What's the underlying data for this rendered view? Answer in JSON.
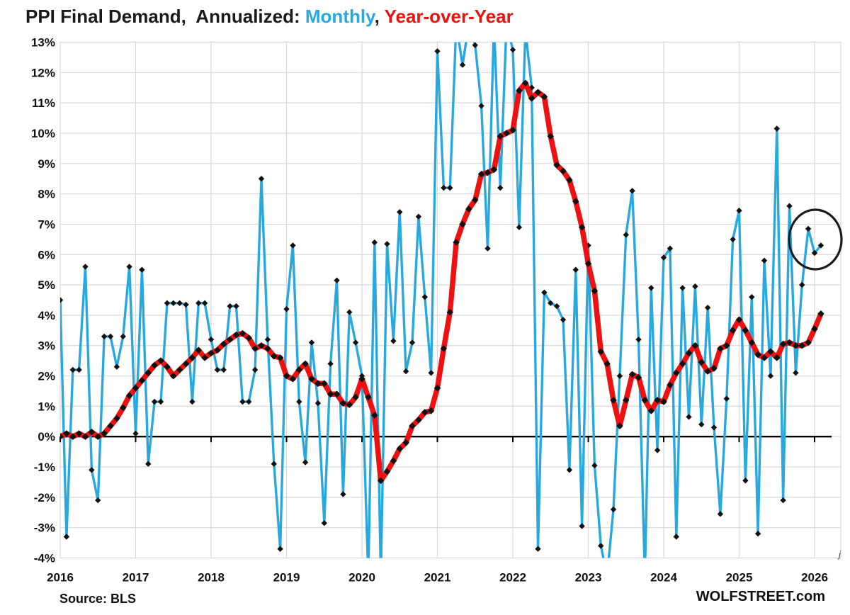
{
  "title": {
    "prefix": "PPI Final Demand,  Annualized: ",
    "monthly_label": "Monthly",
    "separator": ", ",
    "yoy_label": "Year-over-Year"
  },
  "footer": {
    "source": "Source: BLS",
    "brand": "WOLFSTREET.com",
    "stray_glyph": "j"
  },
  "colors": {
    "monthly_line": "#29a8e0",
    "yoy_line": "#ed1111",
    "marker": "#111111",
    "grid": "#d9d9d9",
    "zero_axis": "#000000",
    "annotation_circle": "#1a1a1a",
    "title_accent_blue": "#29a8e0",
    "title_accent_red": "#e8140f"
  },
  "chart_data": {
    "type": "line",
    "title": "PPI Final Demand,  Annualized: Monthly, Year-over-Year",
    "x_axis": {
      "tick_labels": [
        "2016",
        "2017",
        "2018",
        "2019",
        "2020",
        "2021",
        "2022",
        "2023",
        "2024",
        "2025",
        "2026"
      ],
      "unit": "year",
      "months_per_tick": 12,
      "start_month": "2016-01",
      "end_month": "2026-02"
    },
    "y_axis": {
      "min": -4,
      "max": 13,
      "tick_step": 1,
      "tick_labels": [
        "13%",
        "12%",
        "11%",
        "10%",
        "9%",
        "8%",
        "7%",
        "6%",
        "5%",
        "4%",
        "3%",
        "2%",
        "1%",
        "0%",
        "-1%",
        "-2%",
        "-3%",
        "-4%"
      ]
    },
    "grid": true,
    "legend_position": "in-title",
    "series": [
      {
        "name": "Monthly",
        "color": "#29a8e0",
        "values": [
          4.5,
          -3.3,
          2.2,
          2.2,
          5.6,
          -1.1,
          -2.1,
          3.3,
          3.3,
          2.3,
          3.3,
          5.6,
          0.1,
          5.5,
          -0.9,
          1.15,
          1.15,
          4.4,
          4.4,
          4.4,
          4.35,
          1.15,
          4.4,
          4.4,
          3.2,
          2.2,
          2.2,
          4.3,
          4.3,
          1.15,
          1.15,
          2.2,
          8.5,
          3.2,
          -0.9,
          -3.7,
          4.2,
          6.3,
          1.15,
          -0.85,
          3.1,
          1.1,
          -2.85,
          2.4,
          5.15,
          -1.9,
          4.1,
          3.1,
          2.0,
          -4.6,
          6.4,
          -4.6,
          6.35,
          3.15,
          7.4,
          2.15,
          3.1,
          7.25,
          4.6,
          2.1,
          12.7,
          8.2,
          8.2,
          13.6,
          12.25,
          13.6,
          12.9,
          10.9,
          6.2,
          13.6,
          8.2,
          13.6,
          12.75,
          6.9,
          13.4,
          11.5,
          -3.7,
          4.75,
          4.4,
          4.3,
          3.85,
          -1.1,
          5.5,
          -2.95,
          6.3,
          -0.95,
          -3.6,
          -4.6,
          -2.4,
          2.0,
          6.65,
          8.1,
          3.2,
          -4.6,
          4.9,
          -0.45,
          5.9,
          6.2,
          -3.3,
          4.9,
          0.65,
          4.95,
          0.4,
          4.25,
          0.3,
          -2.55,
          1.25,
          6.5,
          7.45,
          -1.45,
          4.6,
          -3.2,
          5.8,
          2.0,
          10.15,
          -2.1,
          7.6,
          2.1,
          5.0,
          6.85,
          6.05,
          6.3
        ]
      },
      {
        "name": "Year-over-Year",
        "color": "#ed1111",
        "values": [
          0.0,
          0.1,
          0.0,
          0.1,
          0.0,
          0.15,
          0.0,
          0.1,
          0.35,
          0.6,
          0.95,
          1.35,
          1.6,
          1.85,
          2.1,
          2.35,
          2.5,
          2.3,
          2.0,
          2.2,
          2.4,
          2.6,
          2.85,
          2.6,
          2.75,
          2.85,
          3.05,
          3.2,
          3.35,
          3.4,
          3.25,
          2.9,
          3.0,
          2.9,
          2.65,
          2.6,
          2.0,
          1.9,
          2.2,
          2.4,
          1.9,
          1.75,
          1.75,
          1.4,
          1.4,
          1.1,
          1.05,
          1.3,
          1.9,
          1.3,
          0.7,
          -1.45,
          -1.15,
          -0.8,
          -0.4,
          -0.2,
          0.35,
          0.55,
          0.8,
          0.85,
          1.6,
          2.9,
          4.1,
          6.4,
          7.0,
          7.5,
          7.8,
          8.65,
          8.7,
          8.8,
          9.9,
          10.0,
          10.1,
          11.4,
          11.65,
          11.15,
          11.35,
          11.2,
          9.9,
          8.95,
          8.75,
          8.45,
          7.75,
          6.9,
          5.7,
          4.8,
          2.8,
          2.4,
          1.2,
          0.35,
          1.2,
          2.05,
          1.95,
          1.2,
          0.85,
          1.2,
          1.15,
          1.7,
          2.1,
          2.4,
          2.75,
          3.0,
          2.45,
          2.15,
          2.25,
          2.9,
          3.0,
          3.5,
          3.85,
          3.5,
          3.1,
          2.7,
          2.6,
          2.8,
          2.6,
          3.05,
          3.1,
          3.0,
          3.0,
          3.1,
          3.55,
          4.05
        ]
      }
    ],
    "annotation": {
      "type": "circle",
      "target": "last three monthly data points",
      "values_circled": [
        6.85,
        6.05,
        6.3
      ]
    }
  }
}
